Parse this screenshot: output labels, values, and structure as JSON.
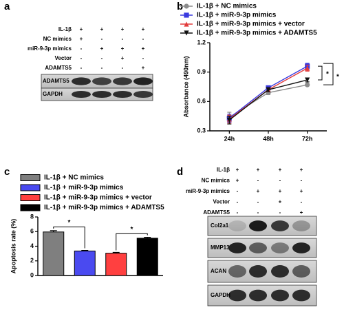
{
  "panel_labels": [
    "a",
    "b",
    "c",
    "d"
  ],
  "blot_a": {
    "conditions": [
      {
        "label": "IL-1β",
        "signs": [
          "+",
          "+",
          "+",
          "+"
        ]
      },
      {
        "label": "NC mimics",
        "signs": [
          "+",
          "-",
          "-",
          "-"
        ]
      },
      {
        "label": "miR-9-3p mimics",
        "signs": [
          "-",
          "+",
          "+",
          "+"
        ]
      },
      {
        "label": "Vector",
        "signs": [
          "-",
          "-",
          "+",
          "-"
        ]
      },
      {
        "label": "ADAMTS5",
        "signs": [
          "-",
          "-",
          "-",
          "+"
        ]
      }
    ],
    "bands": [
      "ADAMTS5",
      "GAPDH"
    ]
  },
  "blot_d": {
    "conditions": [
      {
        "label": "IL-1β",
        "signs": [
          "+",
          "+",
          "+",
          "+"
        ]
      },
      {
        "label": "NC mimics",
        "signs": [
          "+",
          "-",
          "-",
          "-"
        ]
      },
      {
        "label": "miR-9-3p mimics",
        "signs": [
          "-",
          "+",
          "+",
          "+"
        ]
      },
      {
        "label": "Vector",
        "signs": [
          "-",
          "-",
          "+",
          "-"
        ]
      },
      {
        "label": "ADAMTS5",
        "signs": [
          "-",
          "-",
          "-",
          "+"
        ]
      }
    ],
    "bands": [
      "Col2a1",
      "MMP13",
      "ACAN",
      "GAPDH"
    ]
  },
  "chart_data": [
    {
      "type": "line",
      "y_label": "Absorbance (490nm)",
      "categories": [
        "24h",
        "48h",
        "72h"
      ],
      "ylim": [
        0.3,
        1.2
      ],
      "yticks": [
        0.3,
        0.6,
        0.9,
        1.2
      ],
      "series": [
        {
          "name": "IL-1β + NC mimics",
          "color": "#8c8c8c",
          "marker": "circle",
          "values": [
            0.44,
            0.69,
            0.77
          ],
          "errors": [
            0.05,
            0.02,
            0.01
          ]
        },
        {
          "name": "IL-1β + miR-9-3p mimics",
          "color": "#3a3adf",
          "marker": "square",
          "values": [
            0.43,
            0.74,
            0.96
          ],
          "errors": [
            0.04,
            0.02,
            0.03
          ]
        },
        {
          "name": "IL-1β + miR-9-3p mimics + vector",
          "color": "#e23b3b",
          "marker": "triangle",
          "values": [
            0.42,
            0.72,
            0.94
          ],
          "errors": [
            0.04,
            0.02,
            0.03
          ]
        },
        {
          "name": "IL-1β + miR-9-3p mimics + ADAMTS5",
          "color": "#111111",
          "marker": "triangle-down",
          "values": [
            0.41,
            0.72,
            0.82
          ],
          "errors": [
            0.04,
            0.02,
            0.02
          ]
        }
      ],
      "annotations": [
        "*",
        "*"
      ]
    },
    {
      "type": "bar",
      "y_label": "Apoptosis rate (%)",
      "categories": [
        "IL-1β + NC mimics",
        "IL-1β + miR-9-3p mimics",
        "IL-1β + miR-9-3p mimics + vector",
        "IL-1β + miR-9-3p mimics + ADAMTS5"
      ],
      "values": [
        5.95,
        3.35,
        3.05,
        5.1
      ],
      "errors": [
        0.18,
        0.08,
        0.1,
        0.12
      ],
      "colors": [
        "#7f7f7f",
        "#4a4af0",
        "#ff4040",
        "#000000"
      ],
      "ylim": [
        0,
        8
      ],
      "yticks": [
        0,
        2,
        4,
        6,
        8
      ],
      "annotations": [
        "*",
        "*"
      ]
    }
  ]
}
